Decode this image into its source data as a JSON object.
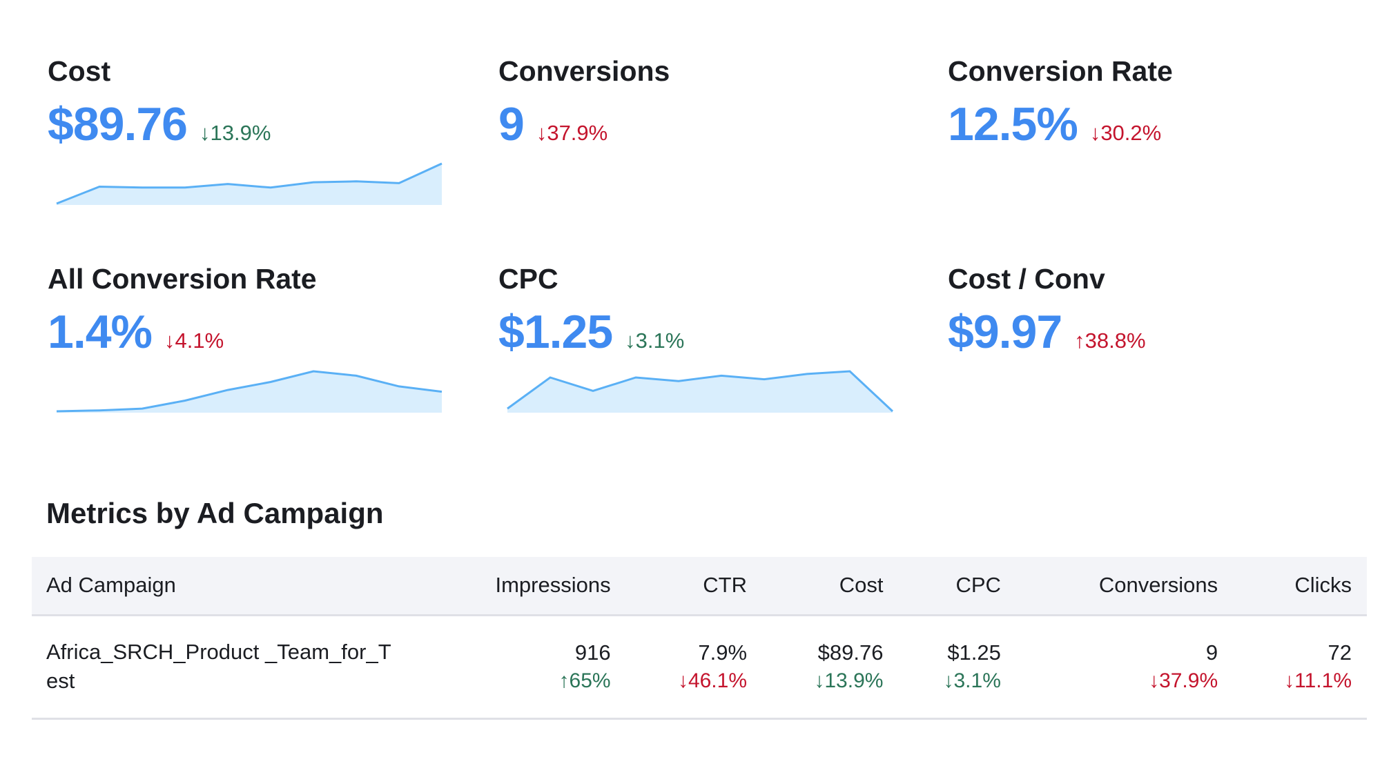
{
  "colors": {
    "accent": "#3f8af0",
    "positive": "#2b7558",
    "negative": "#c4142d",
    "spark_fill": "#d9eefd",
    "spark_line": "#5ab0f5"
  },
  "cards": [
    {
      "title": "Cost",
      "value": "$89.76",
      "delta": "↓13.9%",
      "delta_tone": "down-good",
      "sparkline": [
        0,
        19,
        18,
        18,
        22,
        18,
        24,
        25,
        23,
        45
      ]
    },
    {
      "title": "Conversions",
      "value": "9",
      "delta": "↓37.9%",
      "delta_tone": "down-bad",
      "sparkline": null
    },
    {
      "title": "Conversion Rate",
      "value": "12.5%",
      "delta": "↓30.2%",
      "delta_tone": "down-bad",
      "sparkline": null
    },
    {
      "title": "All Conversion Rate",
      "value": "1.4%",
      "delta": "↓4.1%",
      "delta_tone": "down-bad",
      "sparkline": [
        0,
        1,
        3,
        12,
        24,
        33,
        45,
        40,
        28,
        22
      ]
    },
    {
      "title": "CPC",
      "value": "$1.25",
      "delta": "↓3.1%",
      "delta_tone": "down-good",
      "sparkline": [
        3,
        38,
        23,
        38,
        34,
        40,
        36,
        42,
        45,
        0
      ]
    },
    {
      "title": "Cost / Conv",
      "value": "$9.97",
      "delta": "↑38.8%",
      "delta_tone": "up-bad",
      "sparkline": null
    }
  ],
  "table": {
    "title": "Metrics by Ad Campaign",
    "columns": [
      "Ad Campaign",
      "Impressions",
      "CTR",
      "Cost",
      "CPC",
      "Conversions",
      "Clicks"
    ],
    "rows": [
      {
        "campaign": "Africa_SRCH_Product _Team_for_Test",
        "cells": [
          {
            "value": "916",
            "delta": "↑65%",
            "tone": "up-good"
          },
          {
            "value": "7.9%",
            "delta": "↓46.1%",
            "tone": "down-bad"
          },
          {
            "value": "$89.76",
            "delta": "↓13.9%",
            "tone": "down-good"
          },
          {
            "value": "$1.25",
            "delta": "↓3.1%",
            "tone": "down-good"
          },
          {
            "value": "9",
            "delta": "↓37.9%",
            "tone": "down-bad"
          },
          {
            "value": "72",
            "delta": "↓11.1%",
            "tone": "down-bad"
          }
        ]
      }
    ]
  }
}
